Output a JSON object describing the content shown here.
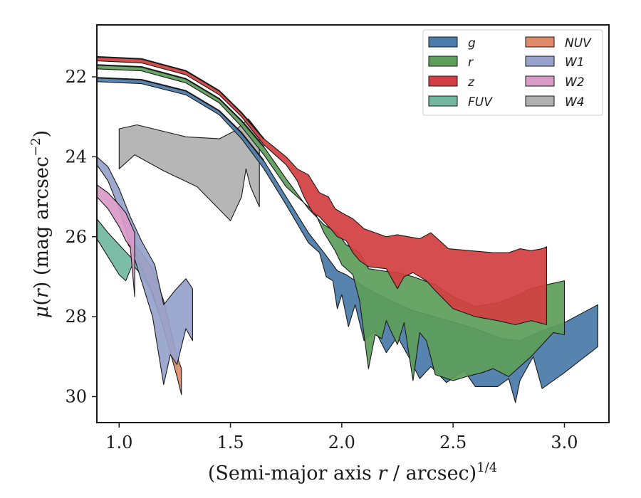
{
  "chart_data": {
    "type": "area",
    "xlabel": "(Semi-major axis r / arcsec)^{1/4}",
    "ylabel": "μ(r) (mag arcsec^{−2})",
    "xlim": [
      0.9,
      3.2
    ],
    "ylim": [
      30.65,
      20.7
    ],
    "y_inverted": true,
    "xticks": [
      1.0,
      1.5,
      2.0,
      2.5,
      3.0
    ],
    "xtick_labels": [
      "1.0",
      "1.5",
      "2.0",
      "2.5",
      "3.0"
    ],
    "yticks": [
      22,
      24,
      26,
      28,
      30
    ],
    "ytick_labels": [
      "22",
      "24",
      "26",
      "28",
      "30"
    ],
    "grid": false,
    "legend_position": "top-right",
    "legend_columns": 2,
    "series": [
      {
        "name": "W4",
        "color": "#b0b0b0",
        "upper": [
          [
            1.0,
            23.3
          ],
          [
            1.08,
            23.2
          ],
          [
            1.3,
            23.5
          ],
          [
            1.45,
            23.55
          ],
          [
            1.52,
            23.35
          ],
          [
            1.58,
            23.05
          ],
          [
            1.63,
            23.4
          ]
        ],
        "lower": [
          [
            1.0,
            24.3
          ],
          [
            1.07,
            23.95
          ],
          [
            1.2,
            24.35
          ],
          [
            1.35,
            24.75
          ],
          [
            1.5,
            25.6
          ],
          [
            1.55,
            25.0
          ],
          [
            1.57,
            24.3
          ],
          [
            1.59,
            24.75
          ],
          [
            1.63,
            25.25
          ]
        ]
      },
      {
        "name": "g",
        "color": "#4a7ba9",
        "upper": [
          [
            0.9,
            22.02
          ],
          [
            1.1,
            22.07
          ],
          [
            1.3,
            22.35
          ],
          [
            1.45,
            22.85
          ],
          [
            1.55,
            23.4
          ],
          [
            1.65,
            24.1
          ],
          [
            1.75,
            25.0
          ],
          [
            1.85,
            25.9
          ],
          [
            1.92,
            26.4
          ],
          [
            1.98,
            26.85
          ],
          [
            2.02,
            26.95
          ],
          [
            2.1,
            27.25
          ],
          [
            2.2,
            27.55
          ],
          [
            2.32,
            27.85
          ],
          [
            2.45,
            28.05
          ],
          [
            2.6,
            28.3
          ],
          [
            2.72,
            28.55
          ],
          [
            2.8,
            28.6
          ],
          [
            2.9,
            28.35
          ],
          [
            3.0,
            28.15
          ],
          [
            3.15,
            27.7
          ]
        ],
        "lower": [
          [
            0.9,
            22.12
          ],
          [
            1.1,
            22.17
          ],
          [
            1.3,
            22.45
          ],
          [
            1.45,
            22.95
          ],
          [
            1.55,
            23.55
          ],
          [
            1.65,
            24.3
          ],
          [
            1.75,
            25.2
          ],
          [
            1.85,
            26.15
          ],
          [
            1.9,
            26.4
          ],
          [
            1.93,
            27.0
          ],
          [
            1.96,
            27.1
          ],
          [
            1.98,
            27.8
          ],
          [
            2.0,
            27.45
          ],
          [
            2.03,
            28.25
          ],
          [
            2.06,
            27.7
          ],
          [
            2.1,
            28.6
          ],
          [
            2.15,
            28.35
          ],
          [
            2.2,
            28.9
          ],
          [
            2.25,
            28.5
          ],
          [
            2.3,
            29.0
          ],
          [
            2.35,
            29.55
          ],
          [
            2.4,
            29.25
          ],
          [
            2.47,
            29.65
          ],
          [
            2.55,
            29.35
          ],
          [
            2.6,
            29.75
          ],
          [
            2.7,
            29.75
          ],
          [
            2.75,
            29.55
          ],
          [
            2.78,
            30.15
          ],
          [
            2.8,
            29.6
          ],
          [
            2.86,
            29.0
          ],
          [
            2.9,
            29.8
          ],
          [
            3.0,
            29.4
          ],
          [
            3.15,
            28.75
          ]
        ]
      },
      {
        "name": "r",
        "color": "#5e9e5b",
        "upper": [
          [
            0.9,
            21.7
          ],
          [
            1.1,
            21.75
          ],
          [
            1.3,
            22.05
          ],
          [
            1.45,
            22.55
          ],
          [
            1.55,
            23.1
          ],
          [
            1.65,
            23.75
          ],
          [
            1.75,
            24.55
          ],
          [
            1.85,
            25.3
          ],
          [
            1.92,
            25.7
          ],
          [
            1.98,
            25.9
          ],
          [
            2.02,
            26.2
          ],
          [
            2.08,
            26.4
          ],
          [
            2.12,
            26.8
          ],
          [
            2.18,
            26.85
          ],
          [
            2.25,
            26.9
          ],
          [
            2.32,
            27.0
          ],
          [
            2.42,
            27.2
          ],
          [
            2.5,
            27.5
          ],
          [
            2.6,
            27.75
          ],
          [
            2.7,
            27.65
          ],
          [
            2.78,
            27.5
          ],
          [
            2.85,
            27.3
          ],
          [
            2.92,
            27.2
          ],
          [
            3.0,
            27.1
          ]
        ],
        "lower": [
          [
            0.9,
            21.8
          ],
          [
            1.1,
            21.85
          ],
          [
            1.3,
            22.15
          ],
          [
            1.45,
            22.65
          ],
          [
            1.55,
            23.25
          ],
          [
            1.65,
            23.95
          ],
          [
            1.75,
            24.75
          ],
          [
            1.82,
            25.1
          ],
          [
            1.88,
            25.4
          ],
          [
            1.92,
            25.9
          ],
          [
            1.97,
            26.35
          ],
          [
            2.0,
            26.7
          ],
          [
            2.05,
            26.95
          ],
          [
            2.08,
            27.6
          ],
          [
            2.12,
            29.3
          ],
          [
            2.15,
            28.45
          ],
          [
            2.18,
            28.55
          ],
          [
            2.2,
            28.1
          ],
          [
            2.22,
            28.35
          ],
          [
            2.25,
            28.7
          ],
          [
            2.28,
            28.15
          ],
          [
            2.32,
            29.6
          ],
          [
            2.35,
            28.4
          ],
          [
            2.38,
            28.6
          ],
          [
            2.42,
            29.45
          ],
          [
            2.5,
            29.6
          ],
          [
            2.56,
            29.5
          ],
          [
            2.63,
            29.4
          ],
          [
            2.68,
            29.3
          ],
          [
            2.75,
            29.5
          ],
          [
            2.85,
            29.0
          ],
          [
            2.95,
            28.4
          ],
          [
            3.0,
            28.45
          ]
        ]
      },
      {
        "name": "z",
        "color": "#d33f42",
        "upper": [
          [
            0.9,
            21.5
          ],
          [
            1.1,
            21.55
          ],
          [
            1.3,
            21.85
          ],
          [
            1.45,
            22.35
          ],
          [
            1.55,
            22.9
          ],
          [
            1.65,
            23.55
          ],
          [
            1.75,
            24.0
          ],
          [
            1.8,
            24.3
          ],
          [
            1.85,
            24.45
          ],
          [
            1.9,
            24.9
          ],
          [
            1.94,
            25.0
          ],
          [
            1.97,
            25.3
          ],
          [
            2.0,
            25.4
          ],
          [
            2.05,
            25.55
          ],
          [
            2.1,
            25.8
          ],
          [
            2.15,
            25.9
          ],
          [
            2.2,
            26.0
          ],
          [
            2.25,
            25.95
          ],
          [
            2.3,
            26.0
          ],
          [
            2.35,
            26.05
          ],
          [
            2.4,
            25.9
          ],
          [
            2.48,
            26.3
          ],
          [
            2.58,
            26.35
          ],
          [
            2.68,
            26.4
          ],
          [
            2.75,
            26.4
          ],
          [
            2.8,
            26.3
          ],
          [
            2.85,
            26.35
          ],
          [
            2.9,
            26.3
          ],
          [
            2.92,
            26.25
          ]
        ],
        "lower": [
          [
            0.9,
            21.6
          ],
          [
            1.1,
            21.65
          ],
          [
            1.3,
            21.95
          ],
          [
            1.45,
            22.45
          ],
          [
            1.55,
            23.0
          ],
          [
            1.65,
            23.7
          ],
          [
            1.75,
            24.2
          ],
          [
            1.8,
            24.6
          ],
          [
            1.83,
            25.0
          ],
          [
            1.87,
            25.4
          ],
          [
            1.9,
            25.5
          ],
          [
            1.95,
            25.8
          ],
          [
            1.98,
            26.0
          ],
          [
            2.02,
            26.1
          ],
          [
            2.05,
            26.4
          ],
          [
            2.08,
            26.6
          ],
          [
            2.12,
            26.75
          ],
          [
            2.2,
            26.8
          ],
          [
            2.25,
            27.3
          ],
          [
            2.28,
            27.0
          ],
          [
            2.32,
            26.9
          ],
          [
            2.38,
            27.1
          ],
          [
            2.42,
            27.35
          ],
          [
            2.5,
            27.8
          ],
          [
            2.6,
            28.0
          ],
          [
            2.7,
            28.1
          ],
          [
            2.78,
            28.2
          ],
          [
            2.85,
            28.1
          ],
          [
            2.92,
            28.2
          ]
        ]
      },
      {
        "name": "FUV",
        "color": "#72b8a0",
        "upper": [
          [
            0.9,
            25.55
          ],
          [
            0.95,
            25.9
          ],
          [
            1.0,
            26.2
          ],
          [
            1.05,
            26.5
          ],
          [
            1.1,
            26.75
          ],
          [
            1.15,
            27.1
          ],
          [
            1.18,
            27.3
          ]
        ],
        "lower": [
          [
            0.9,
            26.05
          ],
          [
            0.95,
            26.5
          ],
          [
            1.0,
            26.95
          ],
          [
            1.03,
            27.1
          ],
          [
            1.06,
            26.7
          ],
          [
            1.1,
            26.95
          ],
          [
            1.14,
            27.3
          ],
          [
            1.18,
            27.95
          ]
        ]
      },
      {
        "name": "NUV",
        "color": "#e08a6a",
        "upper": [
          [
            1.04,
            26.0
          ],
          [
            1.07,
            26.2
          ],
          [
            1.1,
            26.4
          ],
          [
            1.15,
            26.8
          ],
          [
            1.2,
            27.6
          ],
          [
            1.23,
            28.3
          ],
          [
            1.26,
            29.0
          ],
          [
            1.28,
            29.3
          ]
        ],
        "lower": [
          [
            1.04,
            26.2
          ],
          [
            1.07,
            26.4
          ],
          [
            1.1,
            26.8
          ],
          [
            1.15,
            27.4
          ],
          [
            1.2,
            28.3
          ],
          [
            1.23,
            28.9
          ],
          [
            1.26,
            29.5
          ],
          [
            1.28,
            29.95
          ]
        ]
      },
      {
        "name": "W1",
        "color": "#97a3cb",
        "upper": [
          [
            0.9,
            24.0
          ],
          [
            0.95,
            24.25
          ],
          [
            1.0,
            24.8
          ],
          [
            1.05,
            25.5
          ],
          [
            1.1,
            26.1
          ],
          [
            1.16,
            26.7
          ],
          [
            1.2,
            27.7
          ],
          [
            1.25,
            27.35
          ],
          [
            1.3,
            27.05
          ],
          [
            1.33,
            27.3
          ]
        ],
        "lower": [
          [
            0.9,
            24.2
          ],
          [
            0.95,
            24.6
          ],
          [
            1.0,
            25.3
          ],
          [
            1.05,
            26.2
          ],
          [
            1.1,
            27.1
          ],
          [
            1.15,
            28.0
          ],
          [
            1.2,
            29.7
          ],
          [
            1.23,
            28.95
          ],
          [
            1.26,
            29.2
          ],
          [
            1.3,
            28.3
          ],
          [
            1.33,
            28.6
          ]
        ]
      },
      {
        "name": "W2",
        "color": "#d99bc8",
        "upper": [
          [
            0.9,
            24.7
          ],
          [
            0.95,
            24.9
          ],
          [
            1.0,
            25.2
          ],
          [
            1.03,
            25.4
          ],
          [
            1.07,
            25.9
          ]
        ],
        "lower": [
          [
            0.9,
            25.0
          ],
          [
            0.95,
            25.3
          ],
          [
            1.0,
            25.75
          ],
          [
            1.03,
            26.1
          ],
          [
            1.05,
            26.25
          ],
          [
            1.07,
            27.5
          ]
        ]
      }
    ],
    "profile_lines": [
      {
        "band": "g",
        "values": [
          [
            0.9,
            22.02
          ],
          [
            1.1,
            22.07
          ],
          [
            1.3,
            22.35
          ],
          [
            1.45,
            22.85
          ],
          [
            1.55,
            23.4
          ],
          [
            1.65,
            24.1
          ]
        ]
      },
      {
        "band": "r",
        "values": [
          [
            0.9,
            21.7
          ],
          [
            1.1,
            21.75
          ],
          [
            1.3,
            22.05
          ],
          [
            1.45,
            22.55
          ],
          [
            1.55,
            23.1
          ],
          [
            1.65,
            23.75
          ]
        ]
      },
      {
        "band": "z",
        "values": [
          [
            0.9,
            21.5
          ],
          [
            1.1,
            21.55
          ],
          [
            1.3,
            21.85
          ],
          [
            1.45,
            22.35
          ],
          [
            1.55,
            22.9
          ],
          [
            1.65,
            23.55
          ]
        ]
      }
    ],
    "legend": [
      {
        "label": "g",
        "band": "g"
      },
      {
        "label": "r",
        "band": "r"
      },
      {
        "label": "z",
        "band": "z"
      },
      {
        "label": "FUV",
        "band": "FUV"
      },
      {
        "label": "NUV",
        "band": "NUV"
      },
      {
        "label": "W1",
        "band": "W1"
      },
      {
        "label": "W2",
        "band": "W2"
      },
      {
        "label": "W4",
        "band": "W4"
      }
    ]
  }
}
